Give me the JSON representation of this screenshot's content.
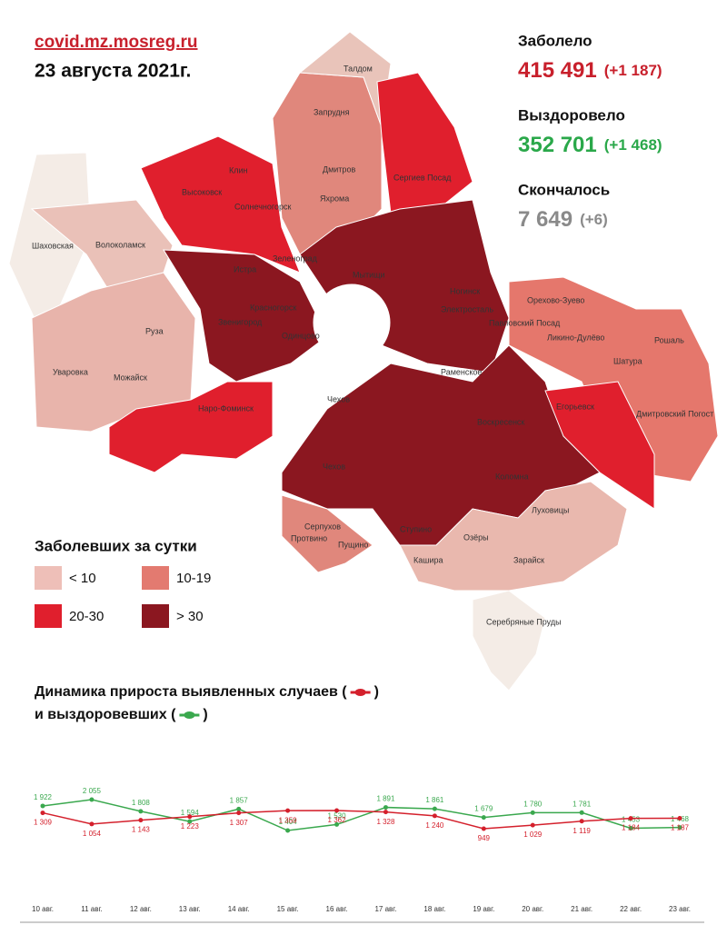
{
  "header": {
    "source": "covid.mz.mosreg.ru",
    "date": "23 августа 2021г."
  },
  "stats": [
    {
      "label": "Заболело",
      "value": "415 491",
      "delta": "(+1 187)",
      "color": "#c8202c"
    },
    {
      "label": "Выздоровело",
      "value": "352 701",
      "delta": "(+1 468)",
      "color": "#2aa84a"
    },
    {
      "label": "Скончалось",
      "value": "7 649",
      "delta": "(+6)",
      "color": "#8a8a8a"
    }
  ],
  "map": {
    "legend_title": "Заболевших за сутки",
    "legend": [
      {
        "label": "< 10",
        "color": "#eebfb8"
      },
      {
        "label": "10-19",
        "color": "#e37a70"
      },
      {
        "label": "20-30",
        "color": "#e01f2d"
      },
      {
        "label": "> 30",
        "color": "#8b1720"
      }
    ],
    "places": [
      "Талдом",
      "Запрудня",
      "Клин",
      "Высоковск",
      "Солнечногорск",
      "Дмитров",
      "Яхрома",
      "Сергиев Посад",
      "Шаховская",
      "Волоколамск",
      "Зеленоград",
      "Истра",
      "Мытищи",
      "Ногинск",
      "Электросталь",
      "Красногорск",
      "Звенигород",
      "Одинцово",
      "Павловский Посад",
      "Орехово-Зуево",
      "Ликино-Дулёво",
      "Рошаль",
      "Руза",
      "Уваровка",
      "Можайск",
      "Раменское",
      "Шатура",
      "Наро-Фоминск",
      "Егорьевск",
      "Дмитровский Погост",
      "Воскресенск",
      "Чехов",
      "Чехов",
      "Коломна",
      "Луховицы",
      "Серпухов",
      "Протвино",
      "Пущино",
      "Ступино",
      "Озёры",
      "Кашира",
      "Зарайск",
      "Серебряные Пруды"
    ]
  },
  "chart_data": {
    "type": "line",
    "title_parts": [
      "Динамика прироста выявленных случаев (",
      ")",
      "и выздоровевших (",
      ")"
    ],
    "categories": [
      "10 авг.",
      "11 авг.",
      "12 авг.",
      "13 авг.",
      "14 авг.",
      "15 авг.",
      "16 авг.",
      "17 авг.",
      "18 авг.",
      "19 авг.",
      "20 авг.",
      "21 авг.",
      "22 авг.",
      "23 авг."
    ],
    "series": [
      {
        "name": "выздоровевших",
        "color": "#3aa84e",
        "values": [
          1922,
          2055,
          1808,
          1594,
          1857,
          1404,
          1530,
          1891,
          1861,
          1679,
          1780,
          1781,
          1453,
          1468
        ],
        "value_labels": [
          "1 922",
          "2 055",
          "1 808",
          "1 594",
          "1 857",
          "1 404",
          "1 530",
          "1 891",
          "1 861",
          "1 679",
          "1 780",
          "1 781",
          "1 453",
          "1 468"
        ]
      },
      {
        "name": "выявленных случаев",
        "color": "#d4202c",
        "values": [
          1309,
          1054,
          1143,
          1223,
          1307,
          1359,
          1362,
          1328,
          1240,
          949,
          1029,
          1119,
          1184,
          1187
        ],
        "value_labels": [
          "1 309",
          "1 054",
          "1 143",
          "1 223",
          "1 307",
          "1 359",
          "1 362",
          "1 328",
          "1 240",
          "949",
          "1 029",
          "1 119",
          "1 184",
          "1 187"
        ]
      }
    ]
  }
}
